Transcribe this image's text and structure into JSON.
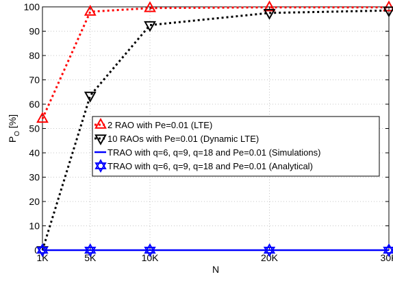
{
  "chart_data": {
    "type": "line",
    "x": [
      1000,
      5000,
      10000,
      20000,
      30000
    ],
    "x_tick_labels": [
      "1K",
      "5K",
      "10K",
      "20K",
      "30K"
    ],
    "xlim": [
      1000,
      30000
    ],
    "ylim": [
      0,
      100
    ],
    "y_ticks": [
      0,
      10,
      20,
      30,
      40,
      50,
      60,
      70,
      80,
      90,
      100
    ],
    "xlabel": "N",
    "ylabel": "P",
    "ylabel_subscript": "O",
    "ylabel_unit": " [%]",
    "grid": true,
    "legend_placement": "center-right",
    "series": [
      {
        "name": "2 RAO with Pe=0.01 (LTE)",
        "values": [
          54,
          98,
          99.5,
          99.8,
          99.8
        ],
        "color": "#ff0000",
        "line": "dotted",
        "marker": "triangle-up"
      },
      {
        "name": "10 RAOs with Pe=0.01 (Dynamic LTE)",
        "values": [
          0,
          63.5,
          92.5,
          97.5,
          98.5
        ],
        "color": "#000000",
        "line": "dotted",
        "marker": "triangle-down"
      },
      {
        "name": "TRAO with q=6, q=9, q=18 and Pe=0.01 (Simulations)",
        "values": [
          0,
          0,
          0,
          0,
          0
        ],
        "color": "#0000ff",
        "line": "solid",
        "marker": "none"
      },
      {
        "name": "TRAO with q=6, q=9, q=18 and Pe=0.01 (Analytical)",
        "values": [
          0,
          0,
          0,
          0,
          0
        ],
        "color": "#0000ff",
        "line": "none",
        "marker": "hexagram"
      }
    ]
  }
}
